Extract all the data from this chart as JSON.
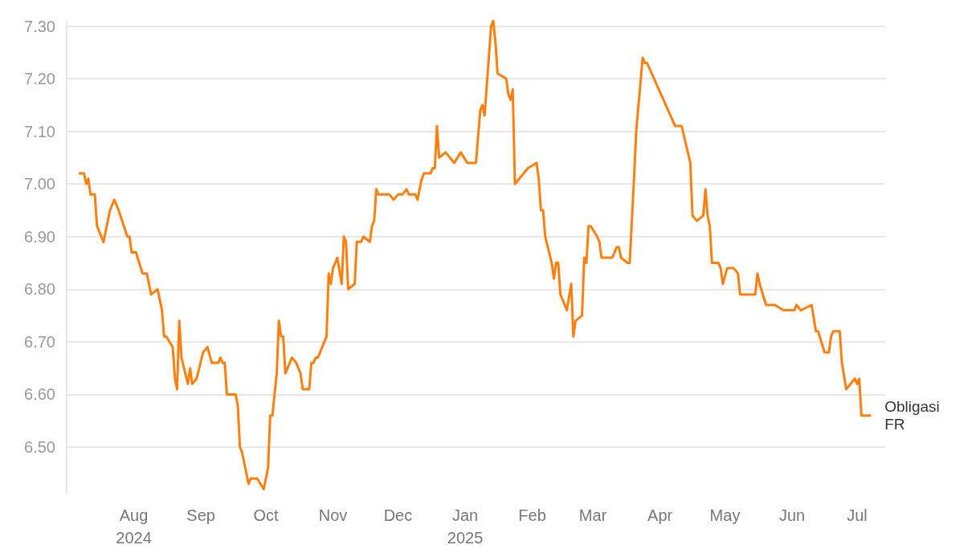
{
  "chart_data": {
    "type": "line",
    "xlim": [
      "2024-07-01",
      "2025-07-14"
    ],
    "xticks": [
      {
        "value": "2024-08-01",
        "label": "Aug\n2024"
      },
      {
        "value": "2024-09-01",
        "label": "Sep"
      },
      {
        "value": "2024-10-01",
        "label": "Oct"
      },
      {
        "value": "2024-11-01",
        "label": "Nov"
      },
      {
        "value": "2024-12-01",
        "label": "Dec"
      },
      {
        "value": "2025-01-01",
        "label": "Jan\n2025"
      },
      {
        "value": "2025-02-01",
        "label": "Feb"
      },
      {
        "value": "2025-03-01",
        "label": "Mar"
      },
      {
        "value": "2025-04-01",
        "label": "Apr"
      },
      {
        "value": "2025-05-01",
        "label": "May"
      },
      {
        "value": "2025-06-01",
        "label": "Jun"
      },
      {
        "value": "2025-07-01",
        "label": "Jul"
      }
    ],
    "yticks": [
      {
        "value": 6.5,
        "label": "6.50"
      },
      {
        "value": 6.6,
        "label": "6.60"
      },
      {
        "value": 6.7,
        "label": "6.70"
      },
      {
        "value": 6.8,
        "label": "6.80"
      },
      {
        "value": 6.9,
        "label": "6.90"
      },
      {
        "value": 7.0,
        "label": "7.00"
      },
      {
        "value": 7.1,
        "label": "7.10"
      },
      {
        "value": 7.2,
        "label": "7.20"
      },
      {
        "value": 7.3,
        "label": "7.30"
      }
    ],
    "ylim": [
      6.41,
      7.31
    ],
    "grid": "y",
    "marker": "none",
    "line_style": "solid",
    "x": [
      "2024-07-07",
      "2024-07-09",
      "2024-07-10",
      "2024-07-11",
      "2024-07-12",
      "2024-07-14",
      "2024-07-15",
      "2024-07-18",
      "2024-07-21",
      "2024-07-23",
      "2024-07-25",
      "2024-07-29",
      "2024-07-30",
      "2024-07-31",
      "2024-08-02",
      "2024-08-05",
      "2024-08-07",
      "2024-08-09",
      "2024-08-12",
      "2024-08-14",
      "2024-08-15",
      "2024-08-16",
      "2024-08-19",
      "2024-08-20",
      "2024-08-21",
      "2024-08-22",
      "2024-08-23",
      "2024-08-26",
      "2024-08-27",
      "2024-08-28",
      "2024-08-30",
      "2024-09-02",
      "2024-09-04",
      "2024-09-06",
      "2024-09-09",
      "2024-09-10",
      "2024-09-11",
      "2024-09-12",
      "2024-09-13",
      "2024-09-17",
      "2024-09-18",
      "2024-09-19",
      "2024-09-20",
      "2024-09-23",
      "2024-09-24",
      "2024-09-25",
      "2024-09-27",
      "2024-09-30",
      "2024-10-02",
      "2024-10-03",
      "2024-10-04",
      "2024-10-06",
      "2024-10-07",
      "2024-10-08",
      "2024-10-09",
      "2024-10-10",
      "2024-10-13",
      "2024-10-15",
      "2024-10-17",
      "2024-10-18",
      "2024-10-21",
      "2024-10-22",
      "2024-10-23",
      "2024-10-24",
      "2024-10-25",
      "2024-10-28",
      "2024-10-29",
      "2024-10-30",
      "2024-10-31",
      "2024-11-01",
      "2024-11-03",
      "2024-11-05",
      "2024-11-06",
      "2024-11-07",
      "2024-11-08",
      "2024-11-11",
      "2024-11-12",
      "2024-11-13",
      "2024-11-14",
      "2024-11-15",
      "2024-11-18",
      "2024-11-19",
      "2024-11-20",
      "2024-11-21",
      "2024-11-22",
      "2024-11-25",
      "2024-11-27",
      "2024-11-29",
      "2024-12-01",
      "2024-12-03",
      "2024-12-05",
      "2024-12-06",
      "2024-12-09",
      "2024-12-10",
      "2024-12-12",
      "2024-12-13",
      "2024-12-16",
      "2024-12-17",
      "2024-12-18",
      "2024-12-19",
      "2024-12-20",
      "2024-12-23",
      "2024-12-27",
      "2024-12-30",
      "2025-01-02",
      "2025-01-06",
      "2025-01-08",
      "2025-01-09",
      "2025-01-10",
      "2025-01-13",
      "2025-01-14",
      "2025-01-15",
      "2025-01-16",
      "2025-01-20",
      "2025-01-21",
      "2025-01-22",
      "2025-01-23",
      "2025-01-24",
      "2025-01-30",
      "2025-02-03",
      "2025-02-04",
      "2025-02-05",
      "2025-02-06",
      "2025-02-07",
      "2025-02-10",
      "2025-02-11",
      "2025-02-12",
      "2025-02-13",
      "2025-02-14",
      "2025-02-17",
      "2025-02-19",
      "2025-02-20",
      "2025-02-21",
      "2025-02-24",
      "2025-02-25",
      "2025-02-26",
      "2025-02-27",
      "2025-02-28",
      "2025-03-03",
      "2025-03-04",
      "2025-03-05",
      "2025-03-06",
      "2025-03-08",
      "2025-03-10",
      "2025-03-12",
      "2025-03-13",
      "2025-03-14",
      "2025-03-17",
      "2025-03-18",
      "2025-03-20",
      "2025-03-21",
      "2025-03-24",
      "2025-03-25",
      "2025-03-26",
      "2025-04-08",
      "2025-04-09",
      "2025-04-11",
      "2025-04-15",
      "2025-04-16",
      "2025-04-18",
      "2025-04-21",
      "2025-04-22",
      "2025-04-23",
      "2025-04-24",
      "2025-04-25",
      "2025-04-28",
      "2025-04-29",
      "2025-04-30",
      "2025-05-02",
      "2025-05-05",
      "2025-05-07",
      "2025-05-08",
      "2025-05-09",
      "2025-05-15",
      "2025-05-16",
      "2025-05-17",
      "2025-05-20",
      "2025-05-22",
      "2025-05-23",
      "2025-05-24",
      "2025-05-28",
      "2025-05-29",
      "2025-06-02",
      "2025-06-03",
      "2025-06-05",
      "2025-06-10",
      "2025-06-12",
      "2025-06-13",
      "2025-06-16",
      "2025-06-18",
      "2025-06-19",
      "2025-06-20",
      "2025-06-23",
      "2025-06-24",
      "2025-06-26",
      "2025-06-30",
      "2025-07-01",
      "2025-07-02",
      "2025-07-03",
      "2025-07-07"
    ],
    "series": [
      {
        "name": "Obligasi FR",
        "color": "#ff7f0e",
        "values": [
          7.02,
          7.02,
          7.0,
          7.01,
          6.98,
          6.98,
          6.92,
          6.89,
          6.95,
          6.97,
          6.95,
          6.9,
          6.9,
          6.87,
          6.87,
          6.83,
          6.83,
          6.79,
          6.8,
          6.76,
          6.71,
          6.71,
          6.69,
          6.63,
          6.61,
          6.74,
          6.67,
          6.62,
          6.65,
          6.62,
          6.63,
          6.68,
          6.69,
          6.66,
          6.66,
          6.67,
          6.66,
          6.66,
          6.6,
          6.6,
          6.58,
          6.5,
          6.49,
          6.43,
          6.44,
          6.44,
          6.44,
          6.42,
          6.46,
          6.56,
          6.56,
          6.64,
          6.74,
          6.71,
          6.71,
          6.64,
          6.67,
          6.66,
          6.64,
          6.61,
          6.61,
          6.66,
          6.66,
          6.67,
          6.67,
          6.7,
          6.71,
          6.83,
          6.81,
          6.84,
          6.86,
          6.81,
          6.9,
          6.89,
          6.8,
          6.81,
          6.89,
          6.89,
          6.89,
          6.9,
          6.89,
          6.92,
          6.93,
          6.99,
          6.98,
          6.98,
          6.98,
          6.97,
          6.98,
          6.98,
          6.99,
          6.98,
          6.98,
          6.97,
          7.01,
          7.02,
          7.02,
          7.03,
          7.03,
          7.11,
          7.05,
          7.06,
          7.04,
          7.06,
          7.04,
          7.04,
          7.14,
          7.15,
          7.13,
          7.3,
          7.31,
          7.27,
          7.21,
          7.2,
          7.17,
          7.16,
          7.18,
          7.0,
          7.03,
          7.04,
          7.01,
          6.95,
          6.95,
          6.9,
          6.85,
          6.82,
          6.85,
          6.85,
          6.79,
          6.76,
          6.81,
          6.71,
          6.74,
          6.75,
          6.86,
          6.85,
          6.92,
          6.92,
          6.9,
          6.89,
          6.86,
          6.86,
          6.86,
          6.86,
          6.88,
          6.88,
          6.86,
          6.85,
          6.85,
          7.01,
          7.1,
          7.24,
          7.23,
          7.23,
          7.11,
          7.11,
          7.11,
          7.04,
          6.94,
          6.93,
          6.94,
          6.99,
          6.94,
          6.92,
          6.85,
          6.85,
          6.84,
          6.81,
          6.84,
          6.84,
          6.83,
          6.79,
          6.79,
          6.79,
          6.83,
          6.81,
          6.77,
          6.77,
          6.77,
          6.77,
          6.76,
          6.76,
          6.76,
          6.77,
          6.76,
          6.77,
          6.72,
          6.72,
          6.68,
          6.68,
          6.71,
          6.72,
          6.72,
          6.66,
          6.61,
          6.63,
          6.62,
          6.63,
          6.56,
          6.56
        ]
      }
    ]
  }
}
